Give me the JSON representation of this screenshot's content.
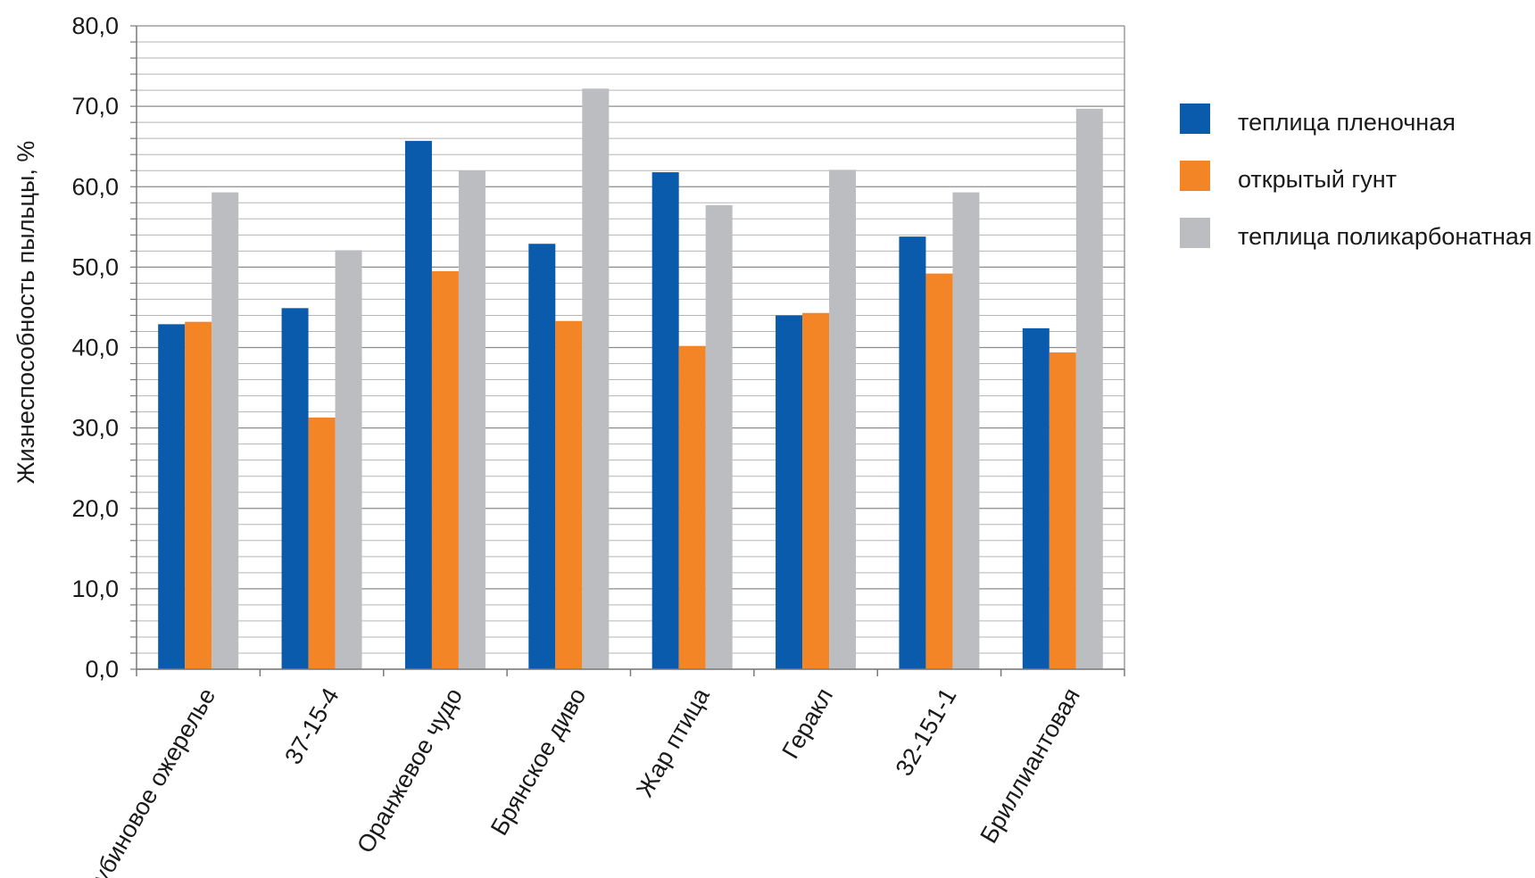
{
  "chart_data": {
    "type": "bar",
    "title": "",
    "xlabel": "",
    "ylabel": "Жизнеспособность пыльцы, %",
    "ylim": [
      0,
      80
    ],
    "ytick_step": 10,
    "minor_grid_step": 2,
    "grid": true,
    "legend_position": "right",
    "ytick_labels": [
      "0,0",
      "10,0",
      "20,0",
      "30,0",
      "40,0",
      "50,0",
      "60,0",
      "70,0",
      "80,0"
    ],
    "categories": [
      "Рубиновое ожерелье",
      "37-15-4",
      "Оранжевое чудо",
      "Брянское диво",
      "Жар птица",
      "Геракл",
      "32-151-1",
      "Бриллиантовая"
    ],
    "series": [
      {
        "name": "теплица пленочная",
        "color": "#0a5bab",
        "values": [
          42.9,
          44.9,
          65.7,
          52.9,
          61.8,
          44.0,
          53.8,
          42.4
        ]
      },
      {
        "name": "открытый гунт",
        "color": "#f38526",
        "values": [
          43.2,
          31.3,
          49.5,
          43.3,
          40.2,
          44.3,
          49.2,
          39.4
        ]
      },
      {
        "name": "теплица поликарбонатная",
        "color": "#bcbdc0",
        "values": [
          59.3,
          52.1,
          62.0,
          72.2,
          57.7,
          62.1,
          59.3,
          69.7
        ]
      }
    ]
  }
}
